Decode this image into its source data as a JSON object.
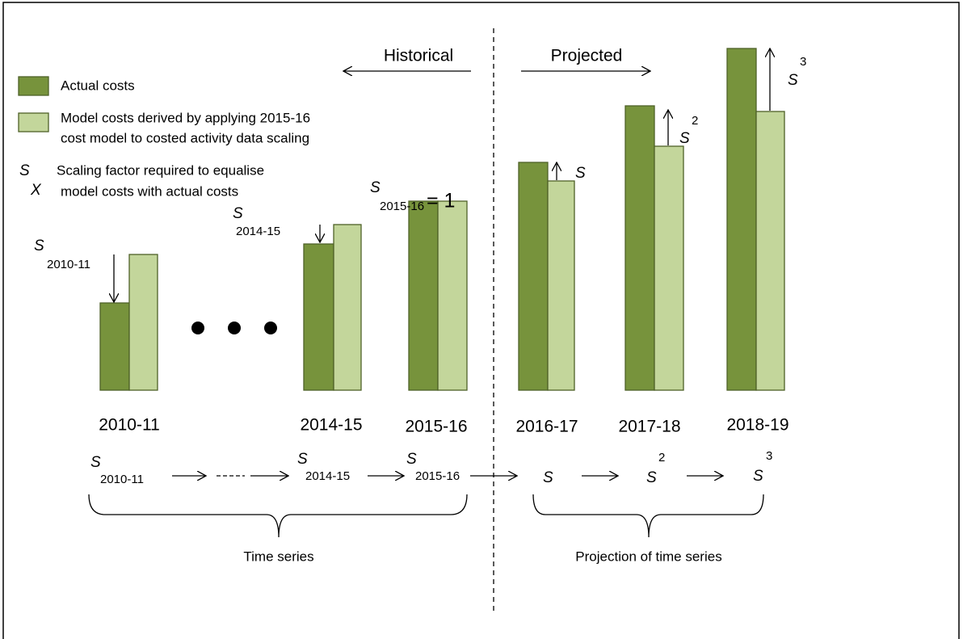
{
  "header": {
    "historical": "Historical",
    "projected": "Projected"
  },
  "legend": [
    "Actual costs",
    [
      "Model costs derived by applying 2015-16",
      "cost model to costed activity data scaling"
    ]
  ],
  "scaling_legend": {
    "symbol": "S",
    "subscript": "X",
    "lines": [
      "Scaling factor required to equalise",
      "model costs with actual costs"
    ]
  },
  "bar_labels": [
    {
      "symbol": "S",
      "sub": "2010-11"
    },
    {
      "symbol": "S",
      "sub": "2014-15"
    },
    {
      "symbol": "S",
      "sub": "2015-16",
      "value": "= 1"
    },
    {
      "symbol": "S"
    },
    {
      "symbol": "S",
      "sup": "2"
    },
    {
      "symbol": "S",
      "sup": "3"
    }
  ],
  "periods": [
    "2010-11",
    "2014-15",
    "2015-16",
    "2016-17",
    "2017-18",
    "2018-19"
  ],
  "sequence": [
    {
      "symbol": "S",
      "sub": "2010-11"
    },
    {
      "symbol": "S",
      "sub": "2014-15"
    },
    {
      "symbol": "S",
      "sub": "2015-16"
    },
    {
      "symbol": "S"
    },
    {
      "symbol": "S",
      "sup": "2"
    },
    {
      "symbol": "S",
      "sup": "3"
    }
  ],
  "groups": [
    "Time series",
    "Projection of time series"
  ]
}
